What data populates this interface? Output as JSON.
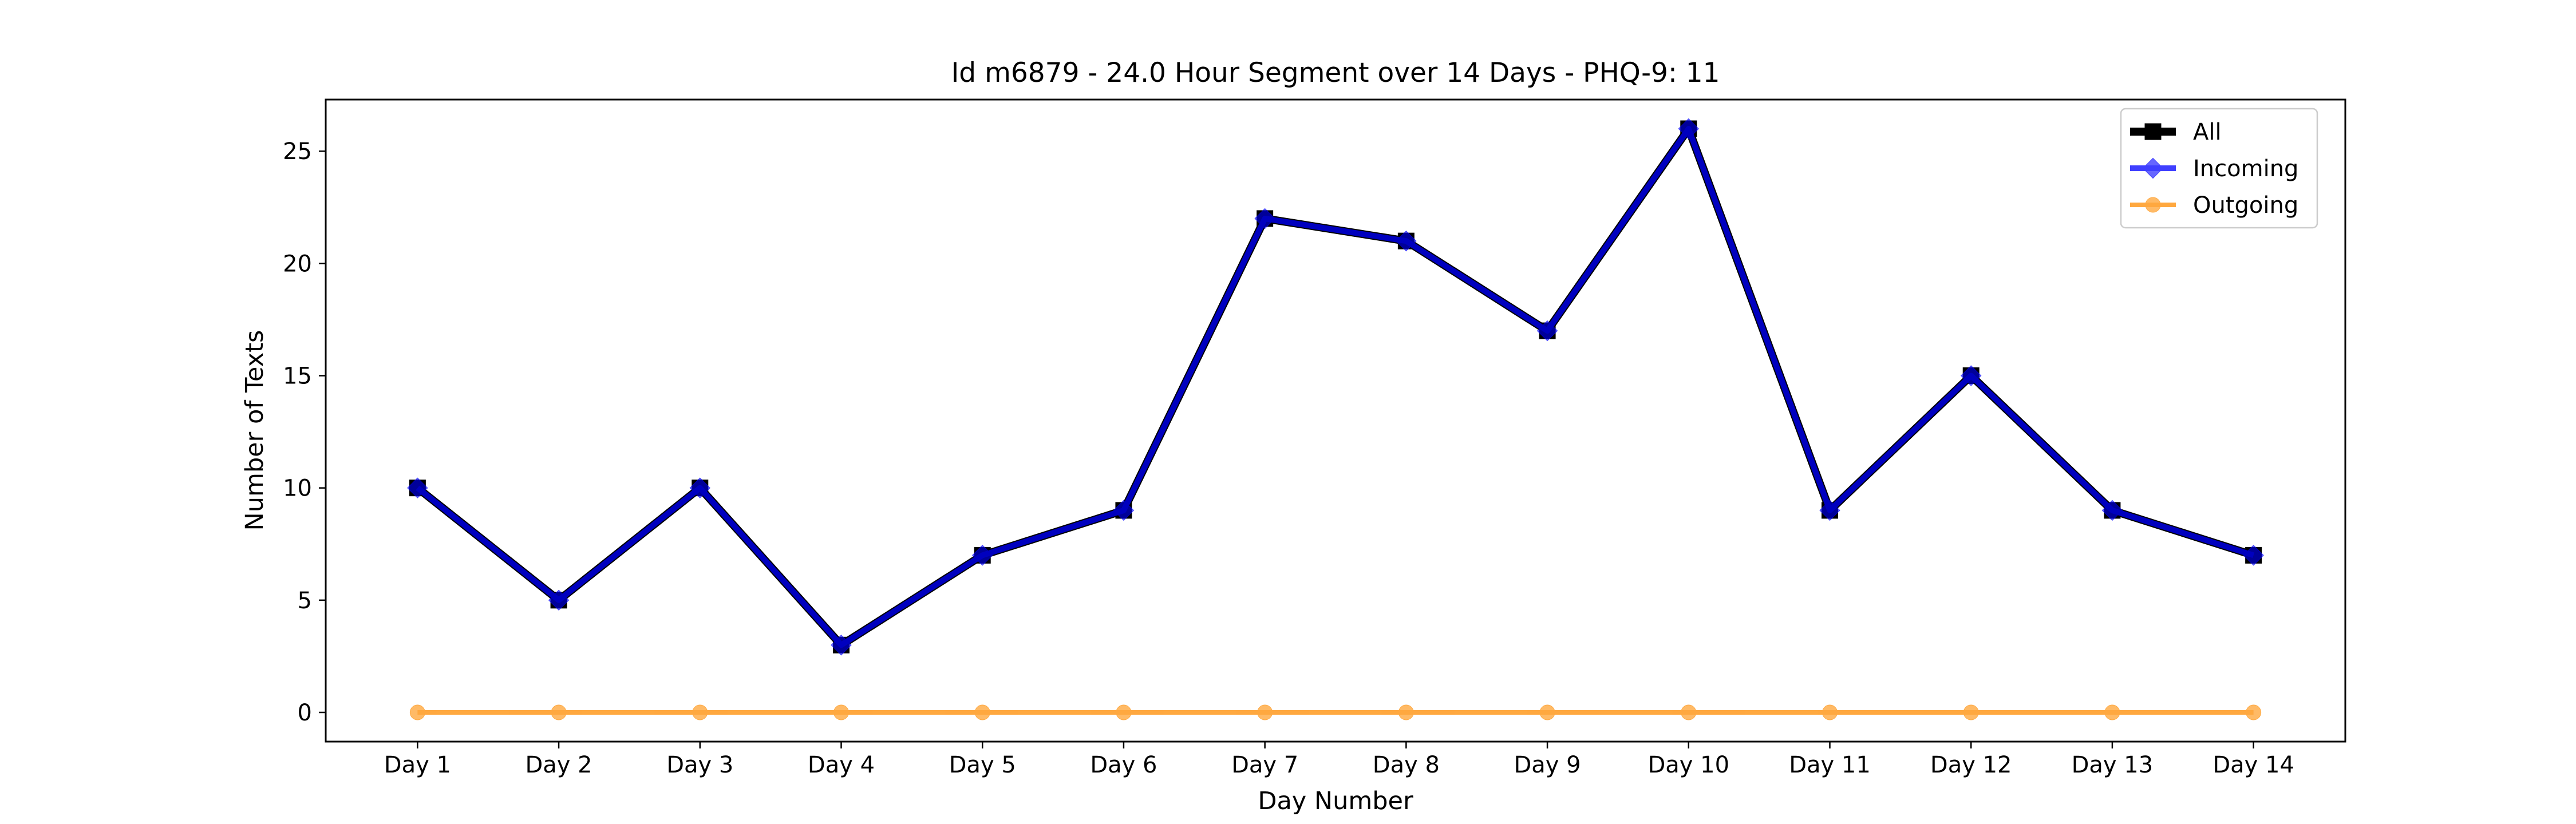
{
  "chart_data": {
    "type": "line",
    "title": "Id m6879 - 24.0 Hour Segment over 14 Days - PHQ-9: 11",
    "xlabel": "Day Number",
    "ylabel": "Number of Texts",
    "categories": [
      "Day 1",
      "Day 2",
      "Day 3",
      "Day 4",
      "Day 5",
      "Day 6",
      "Day 7",
      "Day 8",
      "Day 9",
      "Day 10",
      "Day 11",
      "Day 12",
      "Day 13",
      "Day 14"
    ],
    "ylim": [
      -1.3,
      27.3
    ],
    "yticks": [
      0,
      5,
      10,
      15,
      20,
      25
    ],
    "grid": false,
    "legend_position": "upper right",
    "series": [
      {
        "name": "All",
        "color": "#000000",
        "marker": "square",
        "values": [
          10,
          5,
          10,
          3,
          7,
          9,
          22,
          21,
          17,
          26,
          9,
          15,
          9,
          7
        ]
      },
      {
        "name": "Incoming",
        "color": "#0000ff",
        "marker": "diamond",
        "values": [
          10,
          5,
          10,
          3,
          7,
          9,
          22,
          21,
          17,
          26,
          9,
          15,
          9,
          7
        ]
      },
      {
        "name": "Outgoing",
        "color": "#ff8c00",
        "marker": "circle",
        "values": [
          0,
          0,
          0,
          0,
          0,
          0,
          0,
          0,
          0,
          0,
          0,
          0,
          0,
          0
        ]
      }
    ]
  }
}
